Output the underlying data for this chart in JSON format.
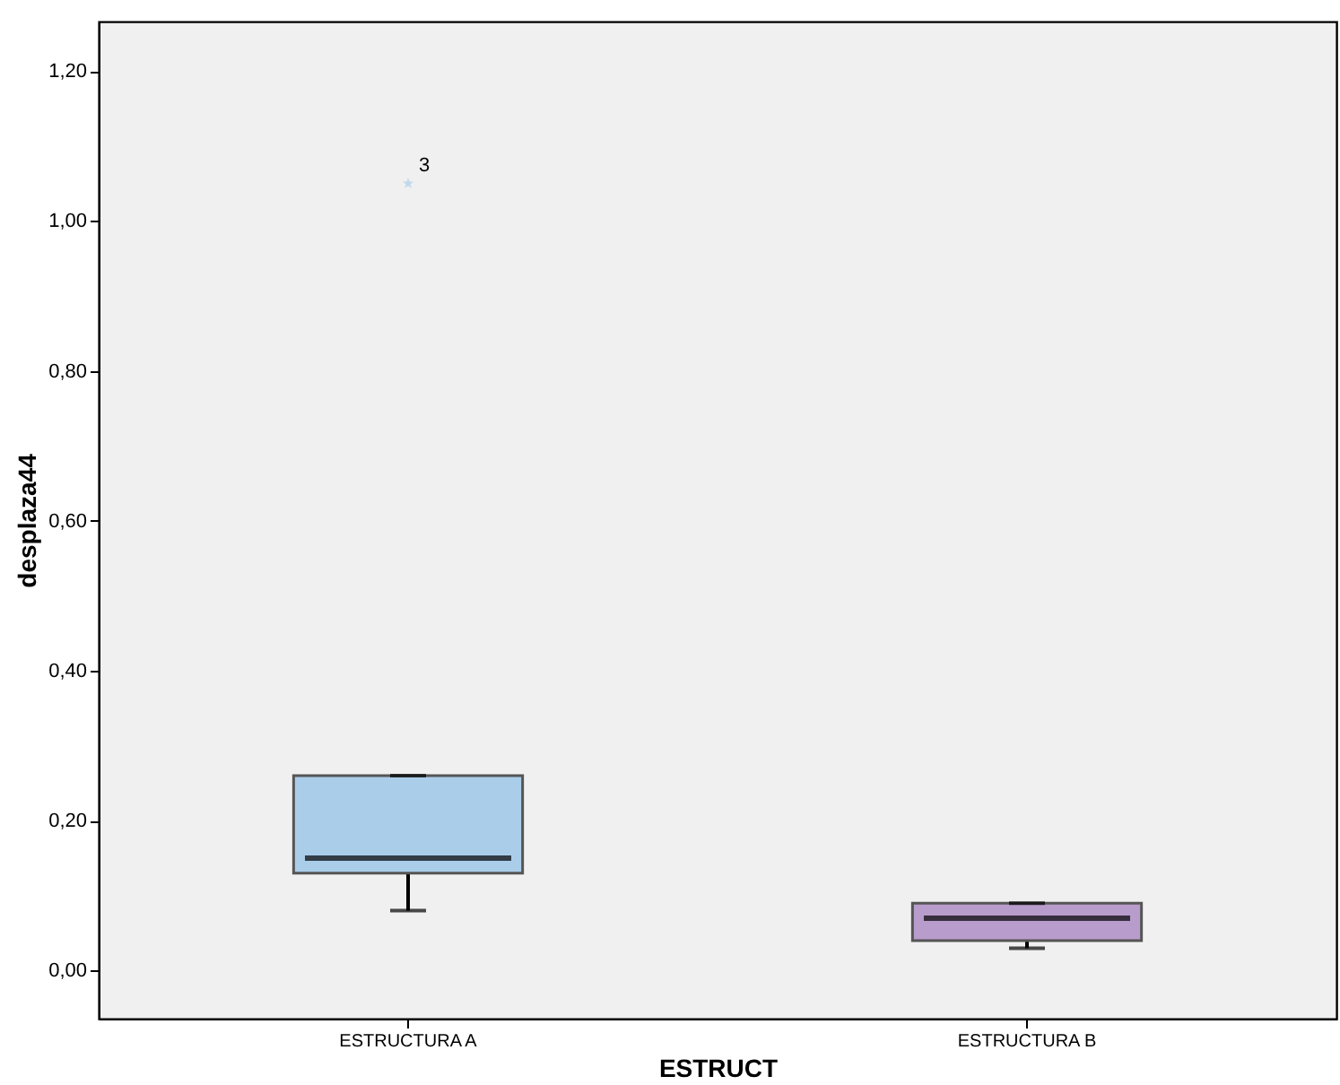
{
  "chart_data": {
    "type": "box",
    "xlabel": "ESTRUCT",
    "ylabel": "desplaza44",
    "categories": [
      "ESTRUCTURA A",
      "ESTRUCTURA B"
    ],
    "boxes": [
      {
        "low": 0.08,
        "q1": 0.13,
        "median": 0.15,
        "q3": 0.26,
        "high": 0.26,
        "outliers": [
          1.05
        ]
      },
      {
        "low": 0.03,
        "q1": 0.04,
        "median": 0.07,
        "q3": 0.09,
        "high": 0.09
      }
    ],
    "colors": [
      "#aacdea",
      "#b89ccb"
    ],
    "marker": "star",
    "ylim": [
      -0.064,
      1.266
    ],
    "yticks": [
      {
        "value": 0,
        "label": "0,00"
      },
      {
        "value": 0.2,
        "label": "0,20"
      },
      {
        "value": 0.4,
        "label": "0,40"
      },
      {
        "value": 0.6,
        "label": "0,60"
      },
      {
        "value": 0.8,
        "label": "0,80"
      },
      {
        "value": 1.0,
        "label": "1,00"
      },
      {
        "value": 1.2,
        "label": "1,20"
      }
    ],
    "annotations": [
      "3"
    ],
    "grid": false
  }
}
